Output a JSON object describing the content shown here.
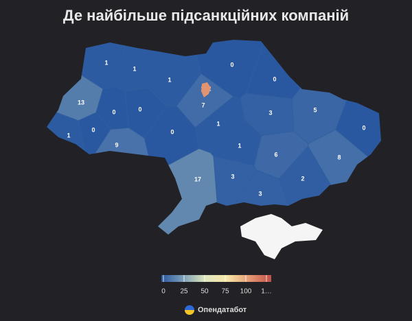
{
  "title": "Де найбільше підсанкційних компаній",
  "map": {
    "type": "choropleth",
    "values": [
      1,
      1,
      1,
      0,
      0,
      102,
      13,
      0,
      0,
      7,
      3,
      5,
      0,
      1,
      0,
      0,
      1,
      9,
      1,
      6,
      8,
      17,
      3,
      2,
      3
    ],
    "colorscale": [
      [
        0,
        "#2a58a0"
      ],
      [
        25,
        "#7d9fb8"
      ],
      [
        50,
        "#dfe6bd"
      ],
      [
        75,
        "#f6e6a8"
      ],
      [
        100,
        "#e59a73"
      ],
      [
        125,
        "#c0504a"
      ]
    ],
    "legend_ticks": [
      0,
      25,
      50,
      75,
      100,
      {
        "value": 125,
        "label": "1…"
      }
    ]
  },
  "source": "Опендатабот"
}
